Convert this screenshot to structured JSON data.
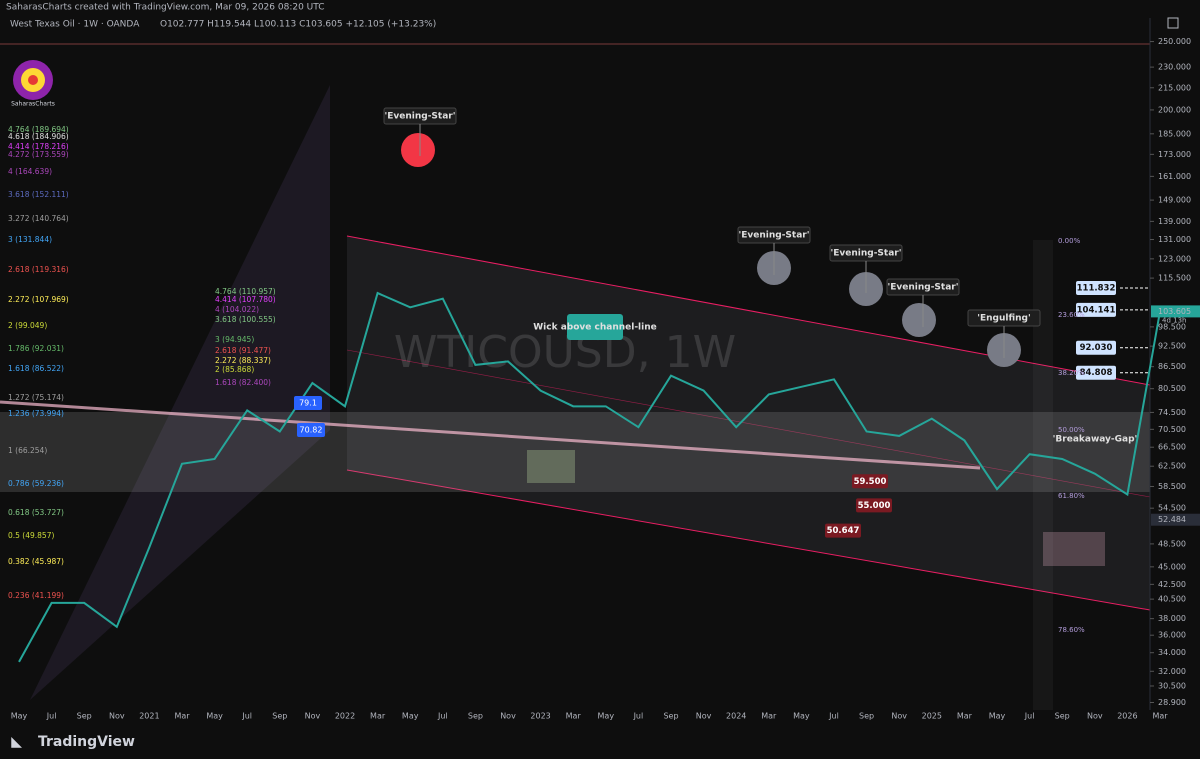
{
  "header": {
    "credit": "SaharasCharts created with TradingView.com, Mar 09, 2026 08:20 UTC",
    "symbol": "West Texas Oil · 1W · OANDA",
    "ohlc": "O102.777 H119.544 L100.113 C103.605 +12.105 (+13.23%)"
  },
  "logo": "SaharasCharts",
  "watermark": "WTICOUSD, 1W",
  "footer": "TradingView",
  "chart_data": {
    "type": "line",
    "log": true,
    "color": "#26a69a",
    "categories": [
      "May",
      "Jul",
      "Sep",
      "Nov",
      "2021",
      "Mar",
      "May",
      "Jul",
      "Sep",
      "Nov",
      "2022",
      "Mar",
      "May",
      "Jul",
      "Sep",
      "Nov",
      "2023",
      "Mar",
      "May",
      "Jul",
      "Sep",
      "Nov",
      "2024",
      "Mar",
      "May",
      "Jul",
      "Sep",
      "Nov",
      "2025",
      "Mar",
      "May",
      "Jul",
      "Sep",
      "Nov",
      "2026",
      "Mar"
    ],
    "values": [
      33,
      40,
      40,
      37,
      48,
      63,
      64,
      75,
      70,
      82,
      76,
      110,
      105,
      108,
      87,
      88,
      80,
      76,
      76,
      71,
      84,
      80,
      71,
      79,
      81,
      83,
      70,
      69,
      73,
      68,
      58,
      65,
      64,
      61,
      57,
      103.6
    ],
    "ylim": [
      28.2,
      270
    ],
    "yticks": [
      {
        "value": 250,
        "label": "250.000"
      },
      {
        "value": 230,
        "label": "230.000"
      },
      {
        "value": 215,
        "label": "215.000"
      },
      {
        "value": 200,
        "label": "200.000"
      },
      {
        "value": 185,
        "label": "185.000"
      },
      {
        "value": 173,
        "label": "173.000"
      },
      {
        "value": 161,
        "label": "161.000"
      },
      {
        "value": 149,
        "label": "149.000"
      },
      {
        "value": 139,
        "label": "139.000"
      },
      {
        "value": 131,
        "label": "131.000"
      },
      {
        "value": 123,
        "label": "123.000"
      },
      {
        "value": 115.5,
        "label": "115.500"
      },
      {
        "value": 98.5,
        "label": "98.500"
      },
      {
        "value": 92.5,
        "label": "92.500"
      },
      {
        "value": 86.5,
        "label": "86.500"
      },
      {
        "value": 80.5,
        "label": "80.500"
      },
      {
        "value": 74.5,
        "label": "74.500"
      },
      {
        "value": 70.5,
        "label": "70.500"
      },
      {
        "value": 66.5,
        "label": "66.500"
      },
      {
        "value": 62.5,
        "label": "62.500"
      },
      {
        "value": 58.5,
        "label": "58.500"
      },
      {
        "value": 54.5,
        "label": "54.500"
      },
      {
        "value": 48.5,
        "label": "48.500"
      },
      {
        "value": 45,
        "label": "45.000"
      },
      {
        "value": 42.5,
        "label": "42.500"
      },
      {
        "value": 40.5,
        "label": "40.500"
      },
      {
        "value": 38,
        "label": "38.000"
      },
      {
        "value": 36,
        "label": "36.000"
      },
      {
        "value": 34,
        "label": "34.000"
      },
      {
        "value": 32,
        "label": "32.000"
      },
      {
        "value": 30.5,
        "label": "30.500"
      },
      {
        "value": 28.9,
        "label": "28.900"
      }
    ],
    "price_labels": [
      {
        "value": 111.832,
        "label": "111.832"
      },
      {
        "value": 104.141,
        "label": "104.141"
      },
      {
        "value": 92.03,
        "label": "92.030"
      },
      {
        "value": 84.808,
        "label": "84.808"
      }
    ],
    "axis_labels": [
      {
        "value": 103.605,
        "label": "103.605",
        "color": "#26a69a"
      },
      {
        "value": 52.484,
        "label": "52.484",
        "color": "#2a2e39"
      }
    ],
    "countdown": "4d 13h",
    "level_tags": [
      {
        "value": 59.5,
        "label": "59.500"
      },
      {
        "value": 55,
        "label": "55.000"
      },
      {
        "value": 50.647,
        "label": "50.647"
      }
    ],
    "blue_tags": [
      "79.1",
      "70.82"
    ],
    "annotations": [
      "'Evening-Star'",
      "'Evening-Star'",
      "'Evening-Star'",
      "'Evening-Star'",
      "'Engulfing'",
      "Wick above channel-line",
      "'Breakaway-Gap'"
    ],
    "fib_percents": [
      "0.00%",
      "23.60%",
      "38.20%",
      "50.00%",
      "61.80%",
      "78.60%"
    ],
    "fib_left": [
      {
        "text": "4.764 (189.694)",
        "color": "#81c784"
      },
      {
        "text": "4.618 (184.906)",
        "color": "#e0e0e0"
      },
      {
        "text": "4.414 (178.216)",
        "color": "#e040fb"
      },
      {
        "text": "4.272 (173.559)",
        "color": "#ab47bc"
      },
      {
        "text": "4 (164.639)",
        "color": "#ab47bc"
      },
      {
        "text": "3.618 (152.111)",
        "color": "#5c6bc0"
      },
      {
        "text": "3.272 (140.764)",
        "color": "#9e9e9e"
      },
      {
        "text": "3 (131.844)",
        "color": "#42a5f5"
      },
      {
        "text": "2.618 (119.316)",
        "color": "#ef5350"
      },
      {
        "text": "2.272 (107.969)",
        "color": "#ffee58"
      },
      {
        "text": "2 (99.049)",
        "color": "#cddc39"
      },
      {
        "text": "1.786 (92.031)",
        "color": "#66bb6a"
      },
      {
        "text": "1.618 (86.522)",
        "color": "#42a5f5"
      },
      {
        "text": "1.272 (75.174)",
        "color": "#9e9e9e"
      },
      {
        "text": "1.236 (73.994)",
        "color": "#42a5f5"
      },
      {
        "text": "1 (66.254)",
        "color": "#9e9e9e"
      },
      {
        "text": "0.786 (59.236)",
        "color": "#42a5f5"
      },
      {
        "text": "0.618 (53.727)",
        "color": "#81c784"
      },
      {
        "text": "0.5 (49.857)",
        "color": "#cddc39"
      },
      {
        "text": "0.382 (45.987)",
        "color": "#ffee58"
      },
      {
        "text": "0.236 (41.199)",
        "color": "#ef5350"
      }
    ],
    "fib_mid": [
      {
        "text": "4.764 (110.957)",
        "color": "#81c784"
      },
      {
        "text": "4.414 (107.780)",
        "color": "#e040fb"
      },
      {
        "text": "4 (104.022)",
        "color": "#ab47bc"
      },
      {
        "text": "3.618 (100.555)",
        "color": "#81c784"
      },
      {
        "text": "3 (94.945)",
        "color": "#66bb6a"
      },
      {
        "text": "2.618 (91.477)",
        "color": "#ef5350"
      },
      {
        "text": "2.272 (88.337)",
        "color": "#ffee58"
      },
      {
        "text": "2 (85.868)",
        "color": "#cddc39"
      },
      {
        "text": "1.618 (82.400)",
        "color": "#ab47bc"
      }
    ]
  }
}
